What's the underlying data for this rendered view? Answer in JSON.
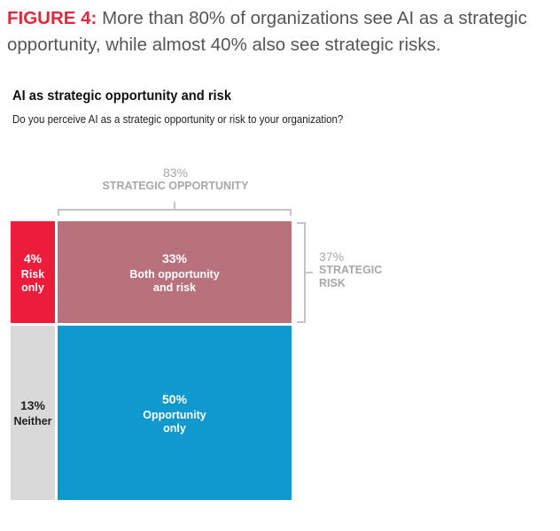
{
  "header": {
    "figure_label": "FIGURE 4:",
    "figure_caption": " More than 80% of organizations see AI as a strategic opportunity, while almost 40% also see strategic risks.",
    "chart_title": "AI as strategic opportunity and risk",
    "question": "Do you perceive AI as a strategic opportunity or risk to your organization?"
  },
  "brackets": {
    "opportunity": {
      "pct": "83%",
      "label": "STRATEGIC OPPORTUNITY"
    },
    "risk": {
      "pct": "37%",
      "label_line1": "STRATEGIC",
      "label_line2": "RISK"
    }
  },
  "cells": {
    "risk_only": {
      "pct": "4%",
      "line1": "Risk",
      "line2": "only"
    },
    "both": {
      "pct": "33%",
      "line1": "Both opportunity",
      "line2": "and risk"
    },
    "neither": {
      "pct": "13%",
      "line1": "Neither"
    },
    "opportunity_only": {
      "pct": "50%",
      "line1": "Opportunity",
      "line2": "only"
    }
  },
  "colors": {
    "risk_only": "#ed1c3a",
    "both": "#b9717c",
    "neither": "#d9d9d9",
    "opportunity_only": "#0f99cf",
    "title_accent": "#e3273a"
  },
  "chart_data": {
    "type": "mosaic",
    "title": "AI as strategic opportunity and risk",
    "subtitle": "Do you perceive AI as a strategic opportunity or risk to your organization?",
    "segments": [
      {
        "name": "Risk only",
        "value": 4,
        "strategic_opportunity": false,
        "strategic_risk": true
      },
      {
        "name": "Both opportunity and risk",
        "value": 33,
        "strategic_opportunity": true,
        "strategic_risk": true
      },
      {
        "name": "Neither",
        "value": 13,
        "strategic_opportunity": false,
        "strategic_risk": false
      },
      {
        "name": "Opportunity only",
        "value": 50,
        "strategic_opportunity": true,
        "strategic_risk": false
      }
    ],
    "totals": [
      {
        "name": "STRATEGIC OPPORTUNITY",
        "value": 83
      },
      {
        "name": "STRATEGIC RISK",
        "value": 37
      }
    ]
  }
}
